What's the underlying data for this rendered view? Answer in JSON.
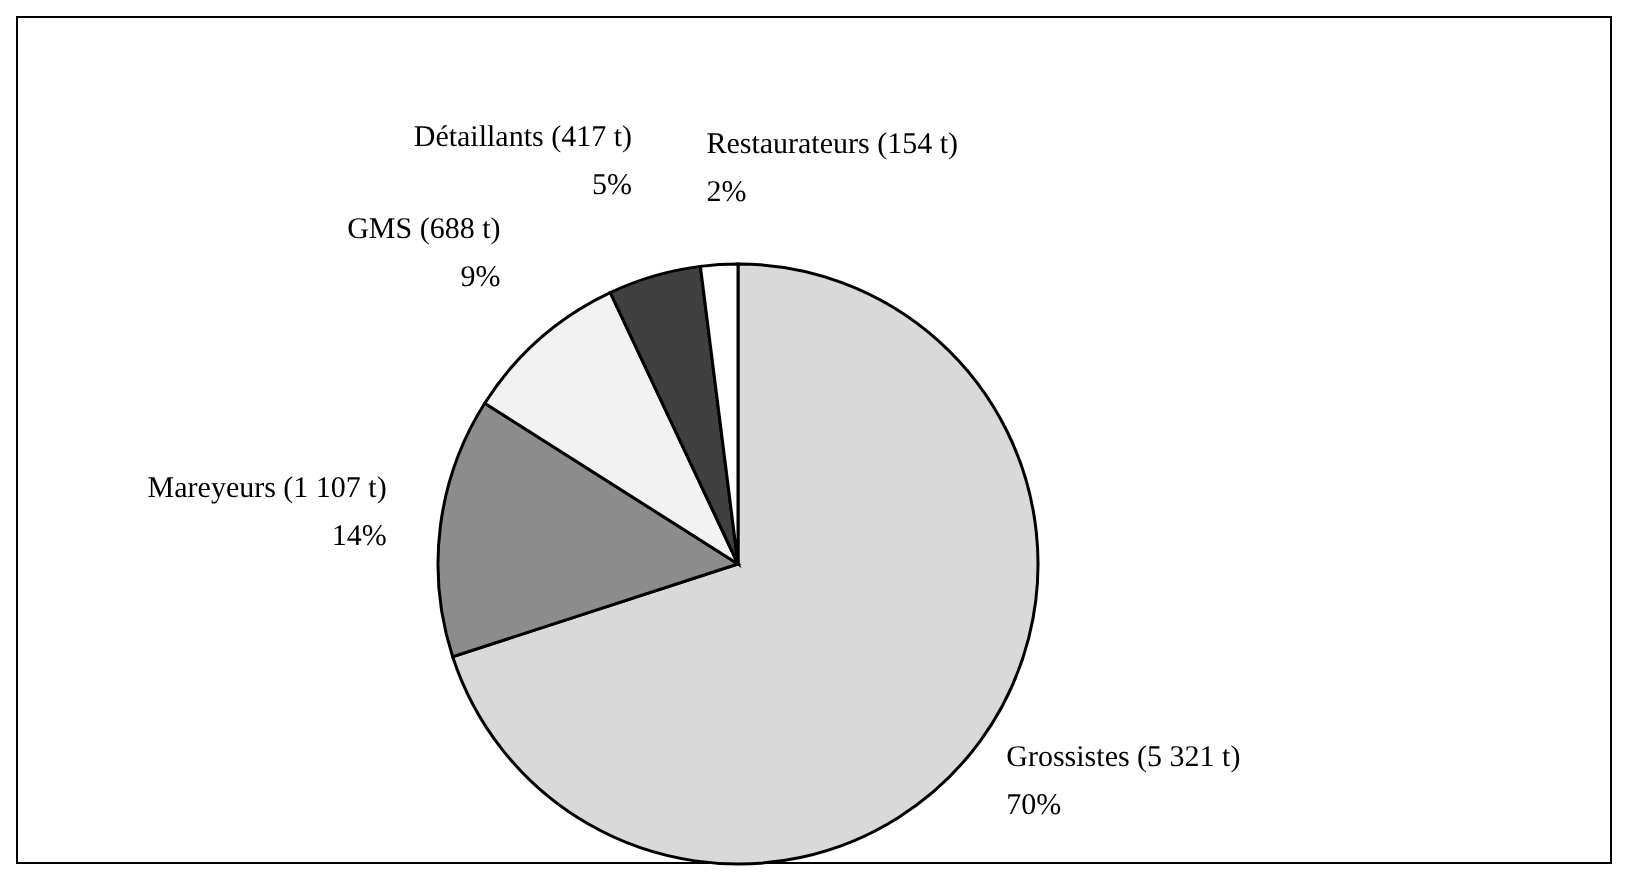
{
  "chart_data": {
    "type": "pie",
    "categories": [
      "Grossistes (5 321 t)",
      "Mareyeurs (1 107 t)",
      "GMS (688 t)",
      "Détaillants (417 t)",
      "Restaurateurs (154 t)"
    ],
    "values": [
      70,
      14,
      9,
      5,
      2
    ],
    "value_labels": [
      "70%",
      "14%",
      "9%",
      "5%",
      "2%"
    ],
    "colors": [
      "#d9d9d9",
      "#8c8c8c",
      "#f2f2f2",
      "#404040",
      "#ffffff"
    ]
  }
}
